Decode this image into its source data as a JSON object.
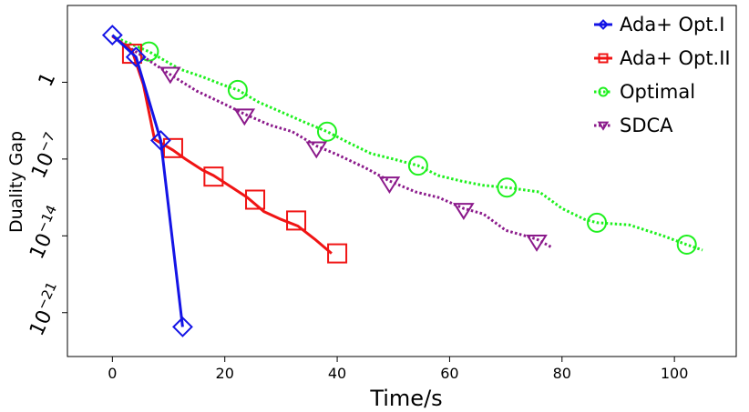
{
  "chart_data": {
    "type": "line",
    "title": "",
    "xlabel": "Time/s",
    "ylabel": "Duality Gap",
    "y_scale": "log10",
    "xlim": [
      -8,
      111
    ],
    "ylim_log10": [
      -25,
      7
    ],
    "x_ticks": [
      0,
      20,
      40,
      60,
      80,
      100
    ],
    "x_tick_labels": [
      "0",
      "20",
      "40",
      "60",
      "80",
      "100"
    ],
    "y_ticks_log10": [
      0,
      -7,
      -14,
      -21
    ],
    "y_tick_labels": [
      {
        "base": "1",
        "exp": ""
      },
      {
        "base": "10",
        "exp": "−7"
      },
      {
        "base": "10",
        "exp": "−14"
      },
      {
        "base": "10",
        "exp": "−21"
      }
    ],
    "legend_position": "top-right",
    "series": [
      {
        "name": "Ada+ Opt.I",
        "color": "#1414e6",
        "line": "solid",
        "marker": "diamond",
        "x": [
          0,
          4.2,
          8.6,
          12.5
        ],
        "log10_y": [
          4.3,
          2.3,
          -5.3,
          -22.3
        ],
        "marker_x": [
          0,
          4.2,
          8.6,
          12.5
        ],
        "marker_log10_y": [
          4.3,
          2.3,
          -5.3,
          -22.3
        ]
      },
      {
        "name": "Ada+ Opt.II",
        "color": "#f01414",
        "line": "solid",
        "marker": "square",
        "x": [
          0,
          3.5,
          5.5,
          7.5,
          10.8,
          13,
          16,
          18,
          21,
          24,
          27,
          30,
          33,
          36,
          39
        ],
        "log10_y": [
          4.2,
          2.9,
          -0.2,
          -5.2,
          -6.2,
          -7.0,
          -8.0,
          -8.5,
          -9.5,
          -10.5,
          -11.8,
          -12.5,
          -13.1,
          -14.3,
          -15.6
        ],
        "marker_x": [
          3.5,
          10.8,
          18,
          25.4,
          32.7,
          40
        ],
        "marker_log10_y": [
          2.6,
          -6.0,
          -8.6,
          -10.7,
          -12.6,
          -15.6
        ]
      },
      {
        "name": "Optimal",
        "color": "#1ef01e",
        "line": "dotted",
        "marker": "circle",
        "x": [
          0,
          6.5,
          12,
          16,
          20,
          22.3,
          26,
          30,
          34,
          38.2,
          42,
          46,
          50,
          54.4,
          58,
          62,
          66,
          70.2,
          76,
          80,
          84,
          86.2,
          92,
          98,
          102.2,
          105
        ],
        "log10_y": [
          4.2,
          2.8,
          1.2,
          0.5,
          -0.3,
          -0.7,
          -1.8,
          -2.7,
          -3.6,
          -4.5,
          -5.5,
          -6.5,
          -7.0,
          -7.6,
          -8.5,
          -9.0,
          -9.4,
          -9.6,
          -10.0,
          -11.5,
          -12.5,
          -12.8,
          -13.0,
          -14.0,
          -14.8,
          -15.3
        ],
        "marker_x": [
          6.5,
          22.3,
          38.2,
          54.4,
          70.2,
          86.2,
          102.2
        ],
        "marker_log10_y": [
          2.8,
          -0.7,
          -4.5,
          -7.6,
          -9.6,
          -12.8,
          -14.8
        ]
      },
      {
        "name": "SDCA",
        "color": "#8b1a8b",
        "line": "dotted",
        "marker": "triangle-down",
        "x": [
          0,
          5,
          10.3,
          15,
          20,
          23.5,
          28,
          32,
          36.3,
          40,
          45,
          49.3,
          54,
          58,
          62.5,
          66,
          70,
          75.5,
          78
        ],
        "log10_y": [
          4.2,
          2.5,
          0.7,
          -0.8,
          -2.0,
          -2.9,
          -3.9,
          -4.5,
          -5.8,
          -6.6,
          -7.8,
          -9.0,
          -10.0,
          -10.5,
          -11.5,
          -12.0,
          -13.5,
          -14.3,
          -15.0
        ],
        "marker_x": [
          10.3,
          23.5,
          36.3,
          49.3,
          62.5,
          75.5
        ],
        "marker_log10_y": [
          0.7,
          -3.1,
          -6.1,
          -9.3,
          -11.7,
          -14.6
        ]
      }
    ]
  }
}
